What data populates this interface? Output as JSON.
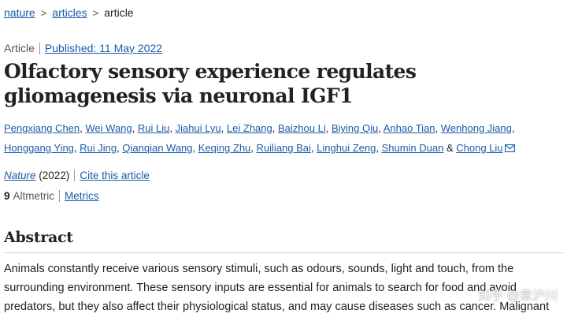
{
  "breadcrumb": {
    "items": [
      "nature",
      "articles"
    ],
    "separator": ">",
    "current": "article"
  },
  "meta": {
    "type": "Article",
    "published": "Published: 11 May 2022"
  },
  "title": "Olfactory sensory experience regulates gliomagenesis via neuronal IGF1",
  "authors": [
    "Pengxiang Chen",
    "Wei Wang",
    "Rui Liu",
    "Jiahui Lyu",
    "Lei Zhang",
    "Baizhou Li",
    "Biying Qiu",
    "Anhao Tian",
    "Wenhong Jiang",
    "Honggang Ying",
    "Rui Jing",
    "Qianqian Wang",
    "Keqing Zhu",
    "Ruiliang Bai",
    "Linghui Zeng",
    "Shumin Duan",
    "Chong Liu"
  ],
  "author_separator": ",",
  "author_last_separator": "&",
  "journal": {
    "name": "Nature",
    "year": "(2022)",
    "cite": "Cite this article"
  },
  "altmetric": {
    "count": "9",
    "label": "Altmetric",
    "metrics": "Metrics"
  },
  "abstract": {
    "heading": "Abstract",
    "lines": [
      "Animals constantly receive various sensory stimuli, such as odours, sounds, light and touch, from the",
      "surrounding environment. These sensory inputs are essential for animals to search for food and avoid",
      "predators, but they also affect their physiological status, and may cause diseases such as cancer. Malignant"
    ]
  },
  "watermark": "知乎 @章沪川",
  "icons": {
    "mail": "mail-icon"
  },
  "colors": {
    "link": "#1a5ba6",
    "text": "#222222"
  }
}
